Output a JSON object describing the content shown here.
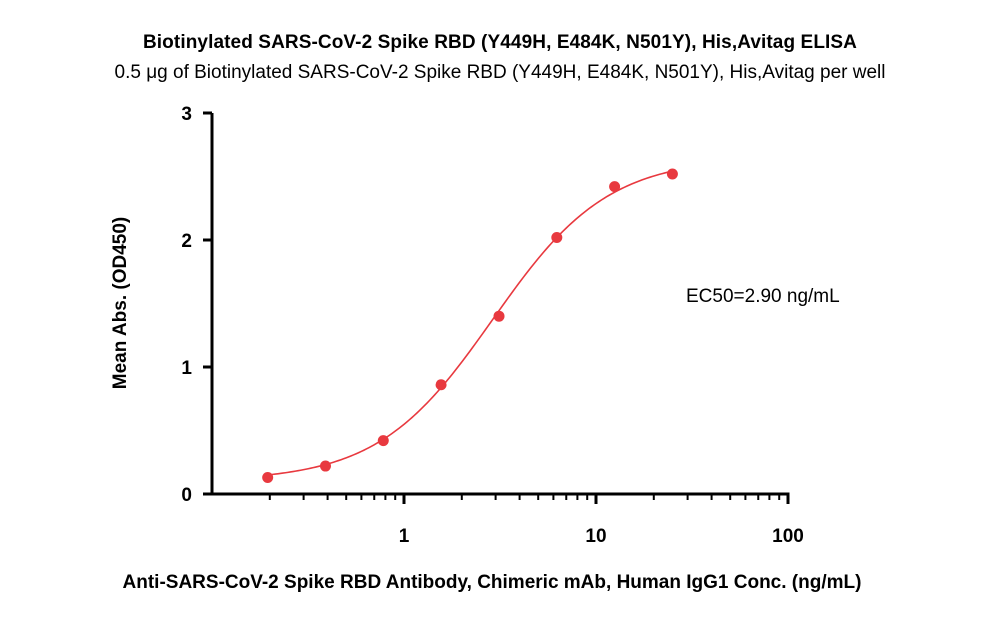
{
  "chart_data": {
    "type": "scatter",
    "title": "Biotinylated SARS-CoV-2 Spike RBD (Y449H, E484K, N501Y), His,Avitag ELISA",
    "subtitle": "0.5 μg of Biotinylated SARS-CoV-2 Spike RBD (Y449H, E484K, N501Y), His,Avitag per well",
    "xlabel": "Anti-SARS-CoV-2 Spike RBD Antibody, Chimeric mAb, Human IgG1 Conc. (ng/mL)",
    "ylabel": "Mean Abs. (OD450)",
    "x_scale": "log",
    "xlim": [
      0.1,
      100
    ],
    "ylim": [
      0,
      3
    ],
    "x_ticks": [
      {
        "value": 1,
        "label": "1"
      },
      {
        "value": 10,
        "label": "10"
      },
      {
        "value": 100,
        "label": "100"
      }
    ],
    "y_ticks": [
      {
        "value": 0,
        "label": "0"
      },
      {
        "value": 1,
        "label": "1"
      },
      {
        "value": 2,
        "label": "2"
      },
      {
        "value": 3,
        "label": "3"
      }
    ],
    "grid": false,
    "series": [
      {
        "color": "#e8393f",
        "x": [
          0.195,
          0.39,
          0.78,
          1.56,
          3.125,
          6.25,
          12.5,
          25
        ],
        "y": [
          0.13,
          0.22,
          0.42,
          0.86,
          1.4,
          2.02,
          2.42,
          2.52
        ],
        "fit": "4PL",
        "fit_params": {
          "bottom": 0.1,
          "top": 2.65,
          "ec50": 2.9,
          "hill": 1.45
        }
      }
    ],
    "annotations": [
      {
        "text": "EC50=2.90 ng/mL"
      }
    ]
  }
}
